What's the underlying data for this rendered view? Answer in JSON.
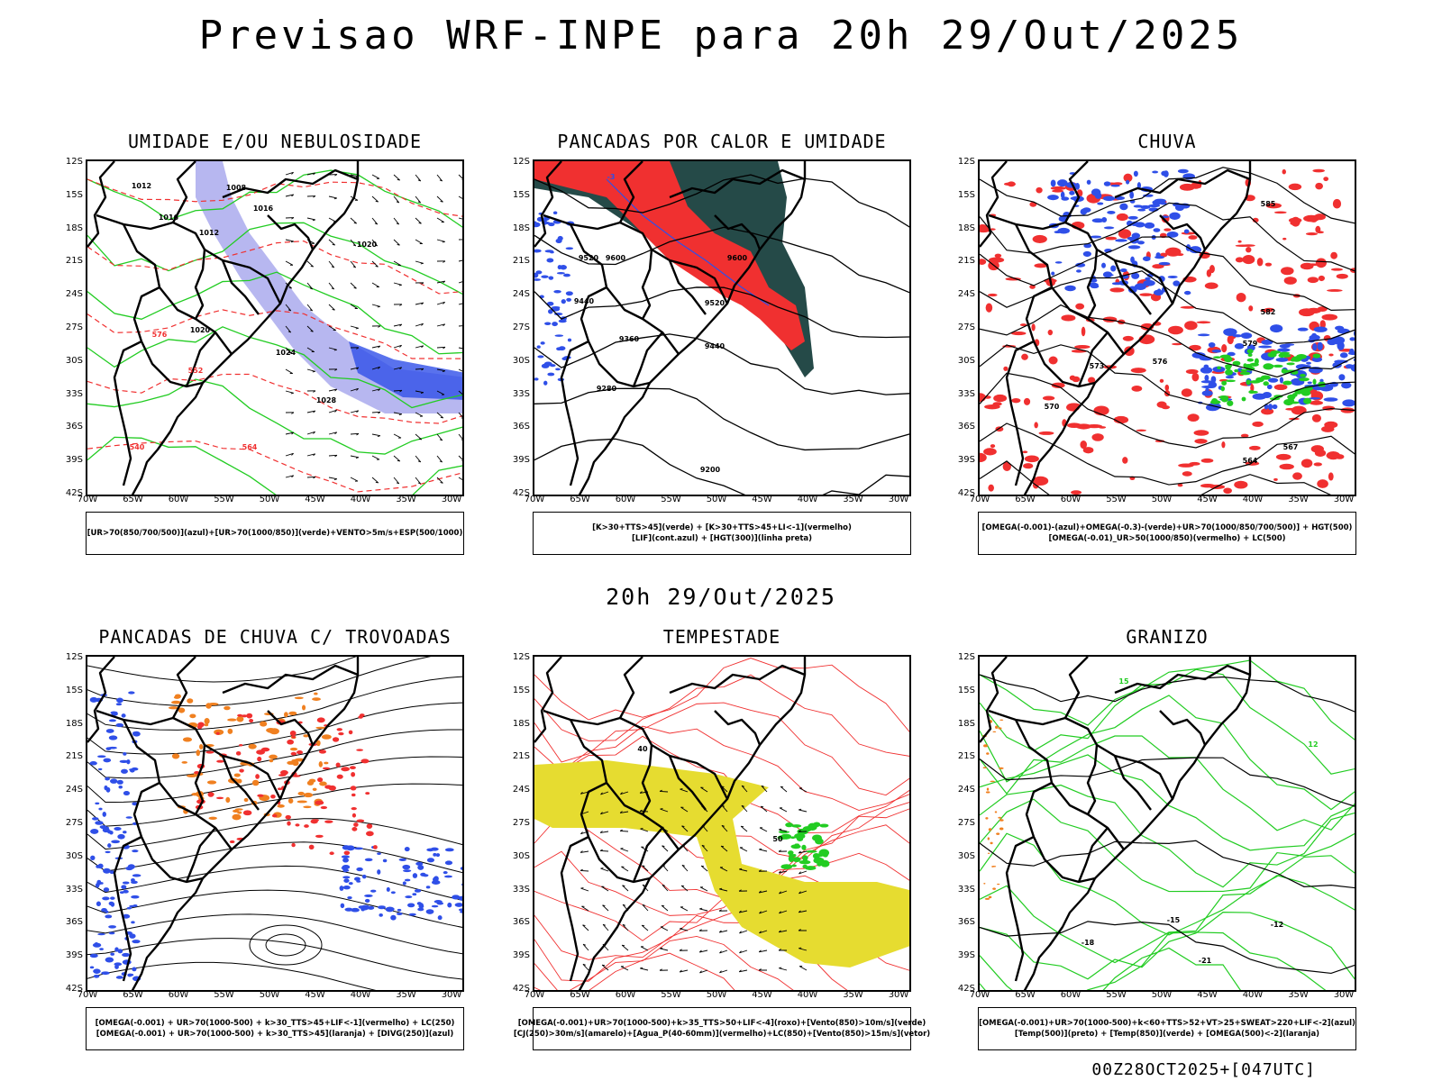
{
  "title": "Previsao WRF-INPE  para 20h 29/Out/2025",
  "mid_title": "20h 29/Out/2025",
  "footer": "00Z28OCT2025+[047UTC]",
  "lat_labels": [
    "12S",
    "15S",
    "18S",
    "21S",
    "24S",
    "27S",
    "30S",
    "33S",
    "36S",
    "39S",
    "42S"
  ],
  "lon_labels": [
    "70W",
    "65W",
    "60W",
    "55W",
    "50W",
    "45W",
    "40W",
    "35W",
    "30W"
  ],
  "colors": {
    "blue": "#2f4fe8",
    "lavender": "#b7b7f0",
    "green": "#22cc22",
    "red": "#f03030",
    "dark_teal": "#254a48",
    "orange": "#f08020",
    "yellow": "#e6dc30",
    "black": "#000000"
  },
  "panels": [
    {
      "title": "UMIDADE E/OU NEBULOSIDADE",
      "legend": [
        "[UR>70(850/700/500)](azul)+[UR>70(1000/850)](verde)+VENTO>5m/s+ESP(500/1000)"
      ],
      "contour_labels": [
        "1012",
        "1008",
        "1016",
        "1012",
        "1020",
        "1016",
        "1020",
        "1024",
        "1028",
        "564",
        "576",
        "552",
        "540"
      ]
    },
    {
      "title": "PANCADAS POR CALOR E UMIDADE",
      "legend": [
        "[K>30+TTS>45](verde) + [K>30+TTS>45+LI<-1](vermelho)",
        "[LIF](cont.azul) + [HGT(300)](linha preta)"
      ],
      "contour_labels": [
        "9520",
        "9600",
        "9440",
        "9360",
        "9280",
        "9200",
        "9520",
        "9600",
        "9440",
        "-3"
      ]
    },
    {
      "title": "CHUVA",
      "legend": [
        "[OMEGA(-0.001)-(azul)+OMEGA(-0.3)-(verde)+UR>70(1000/850/700/500)] + HGT(500)",
        "[OMEGA(-0.01)_UR>50(1000/850)(vermelho) + LC(500)"
      ],
      "contour_labels": [
        "585",
        "582",
        "579",
        "576",
        "573",
        "570",
        "567",
        "564"
      ]
    },
    {
      "title": "PANCADAS DE CHUVA C/ TROVOADAS",
      "legend": [
        "[OMEGA(-0.001) + UR>70(1000-500) + k>30_TTS>45+LIF<-1](vermelho) + LC(250)",
        "[OMEGA(-0.001) + UR>70(1000-500) + k>30_TTS>45](laranja) + [DIVG(250)](azul)"
      ],
      "contour_labels": []
    },
    {
      "title": "TEMPESTADE",
      "legend": [
        "[OMEGA(-0.001)+UR>70(1000-500)+k>35_TTS>50+LIF<-4](roxo)+[Vento(850)>10m/s](verde)",
        "[CJ(250)>30m/s](amarelo)+[Agua_P(40-60mm)](vermelho)+LC(850)+[Vento(850)>15m/s](vetor)"
      ],
      "contour_labels": [
        "50",
        "40"
      ]
    },
    {
      "title": "GRANIZO",
      "legend": [
        "[OMEGA(-0.001)+UR>70(1000-500)+k<60+TTS>52+VT>25+SWEAT>220+LIF<-2](azul)",
        "[Temp(500)](preto) + [Temp(850)](verde) + [OMEGA(500)<-2](laranja)"
      ],
      "contour_labels": [
        "-15",
        "-12",
        "-18",
        "-21",
        "15",
        "12"
      ]
    }
  ]
}
